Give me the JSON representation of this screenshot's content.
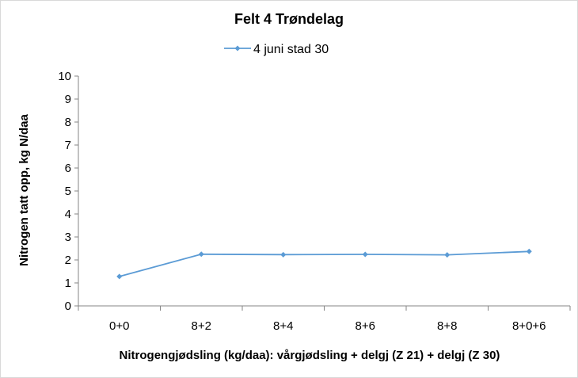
{
  "chart_data": {
    "type": "line",
    "title": "Felt 4 Trøndelag",
    "xlabel": "Nitrogengjødsling (kg/daa): vårgjødsling + delgj (Z 21) + delgj (Z 30)",
    "ylabel": "Nitrogen tatt opp, kg N/daa",
    "categories": [
      "0+0",
      "8+2",
      "8+4",
      "8+6",
      "8+8",
      "8+0+6"
    ],
    "series": [
      {
        "name": "4 juni stad 30",
        "values": [
          1.28,
          2.25,
          2.23,
          2.24,
          2.22,
          2.37
        ],
        "color": "#5b9bd5"
      }
    ],
    "ylim": [
      0,
      10
    ],
    "yticks": [
      "0",
      "1",
      "2",
      "3",
      "4",
      "5",
      "6",
      "7",
      "8",
      "9",
      "10"
    ],
    "grid": false,
    "legend_position": "top"
  }
}
